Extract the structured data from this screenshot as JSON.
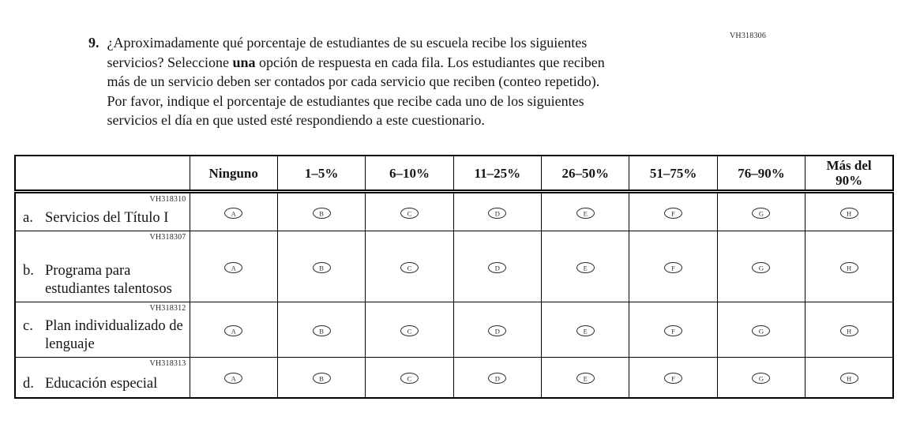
{
  "question": {
    "number": "9.",
    "code": "VH318306",
    "lines": [
      [
        {
          "t": "¿Aproximadamente qué porcentaje de estudiantes de su escuela recibe los siguientes",
          "b": false
        }
      ],
      [
        {
          "t": "servicios? Seleccione ",
          "b": false
        },
        {
          "t": "una",
          "b": true
        },
        {
          "t": " opción de respuesta en cada fila. Los estudiantes que reciben",
          "b": false
        }
      ],
      [
        {
          "t": "más de un servicio deben ser contados por cada servicio que reciben (conteo repetido).",
          "b": false
        }
      ],
      [
        {
          "t": "Por favor, indique el porcentaje de estudiantes que recibe cada uno de los siguientes",
          "b": false
        }
      ],
      [
        {
          "t": "servicios el día en que usted esté respondiendo a este cuestionario.",
          "b": false
        }
      ]
    ]
  },
  "table": {
    "column_headers": [
      "Ninguno",
      "1–5%",
      "6–10%",
      "11–25%",
      "26–50%",
      "51–75%",
      "76–90%",
      "Más del\n90%"
    ],
    "option_letters": [
      "A",
      "B",
      "C",
      "D",
      "E",
      "F",
      "G",
      "H"
    ],
    "rows": [
      {
        "letter": "a.",
        "text": "Servicios del Título I",
        "code": "VH318310"
      },
      {
        "letter": "b.",
        "text": "Programa para estudiantes talentosos",
        "code": "VH318307"
      },
      {
        "letter": "c.",
        "text": "Plan individualizado de lenguaje",
        "code": "VH318312"
      },
      {
        "letter": "d.",
        "text": "Educación especial",
        "code": "VH318313"
      }
    ]
  }
}
